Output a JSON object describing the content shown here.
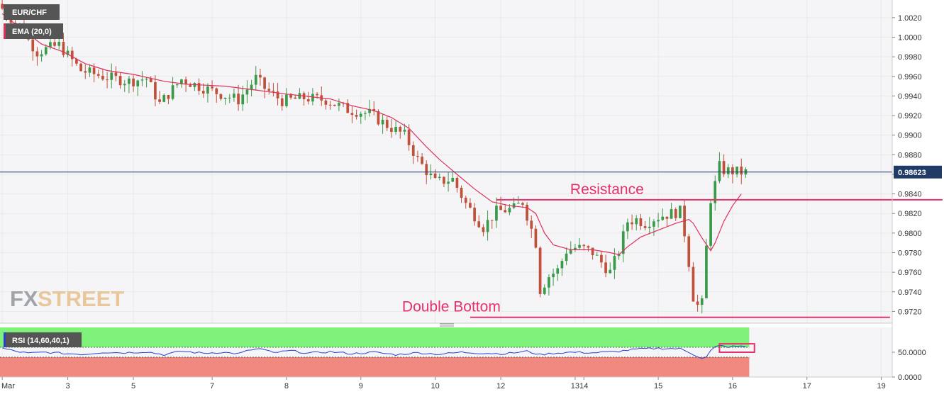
{
  "colors": {
    "up": "#3a9a4a",
    "down": "#c0503a",
    "ema": "#e0305a",
    "annotation": "#e8306a",
    "price_line": "#1b3a6b",
    "rsi_line": "#2a3fd0",
    "rsi_over": "#7ef27a",
    "rsi_under": "#f08a80",
    "grid": "#e9e9e9",
    "panel_bg": "#f5f5f7",
    "label_bg": "#555555",
    "price_tag_bg": "#1f3b66"
  },
  "chart_data": [
    {
      "type": "candlestick",
      "symbol_label": "EUR/CHF",
      "indicator_label": "EMA (20,0)",
      "watermark": {
        "fx": "FX",
        "street": "STREET"
      },
      "ylim": [
        0.9708,
        1.0038
      ],
      "y_ticks": [
        "1.0020",
        "1.0000",
        "0.9980",
        "0.9960",
        "0.9940",
        "0.9920",
        "0.9900",
        "0.9880",
        "0.9860",
        "0.9840",
        "0.9820",
        "0.9800",
        "0.9780",
        "0.9760",
        "0.9740",
        "0.9720"
      ],
      "x_ticks": [
        {
          "label": "Mar",
          "index": 0
        },
        {
          "label": "3",
          "index": 15
        },
        {
          "label": "5",
          "index": 30
        },
        {
          "label": "7",
          "index": 48
        },
        {
          "label": "8",
          "index": 65
        },
        {
          "label": "9",
          "index": 82
        },
        {
          "label": "10",
          "index": 99
        },
        {
          "label": "12",
          "index": 114
        },
        {
          "label": "13",
          "index": 131
        },
        {
          "label": "14",
          "index": 133
        },
        {
          "label": "15",
          "index": 150
        },
        {
          "label": "16",
          "index": 167
        },
        {
          "label": "17",
          "index": 184
        },
        {
          "label": "19",
          "index": 201
        }
      ],
      "current_price": "0.98623",
      "current_price_value": 0.98623,
      "annotations": [
        {
          "text": "Resistance",
          "y": 0.9834,
          "x_start": 113,
          "x_end": 215
        },
        {
          "text": "Double Bottom",
          "y": 0.9714,
          "x_start": 107,
          "x_end": 203
        }
      ],
      "anchors": [
        [
          0,
          1.0034
        ],
        [
          4,
          1.0015
        ],
        [
          9,
          0.9985
        ],
        [
          14,
          0.9992
        ],
        [
          19,
          0.9966
        ],
        [
          24,
          0.996
        ],
        [
          30,
          0.9955
        ],
        [
          34,
          0.9958
        ],
        [
          37,
          0.9932
        ],
        [
          42,
          0.9957
        ],
        [
          46,
          0.995
        ],
        [
          51,
          0.9942
        ],
        [
          55,
          0.9936
        ],
        [
          59,
          0.9958
        ],
        [
          61,
          0.9948
        ],
        [
          65,
          0.9935
        ],
        [
          70,
          0.9938
        ],
        [
          75,
          0.9936
        ],
        [
          80,
          0.9926
        ],
        [
          85,
          0.9922
        ],
        [
          89,
          0.991
        ],
        [
          93,
          0.99
        ],
        [
          96,
          0.9875
        ],
        [
          100,
          0.9852
        ],
        [
          104,
          0.9855
        ],
        [
          107,
          0.983
        ],
        [
          111,
          0.9806
        ],
        [
          114,
          0.9822
        ],
        [
          118,
          0.9825
        ],
        [
          120,
          0.9832
        ],
        [
          123,
          0.979
        ],
        [
          124,
          0.9742
        ],
        [
          126,
          0.9756
        ],
        [
          128,
          0.9762
        ],
        [
          130,
          0.9782
        ],
        [
          132,
          0.9785
        ],
        [
          134,
          0.9784
        ],
        [
          136,
          0.978
        ],
        [
          138,
          0.977
        ],
        [
          140,
          0.976
        ],
        [
          142,
          0.9782
        ],
        [
          144,
          0.9812
        ],
        [
          146,
          0.9814
        ],
        [
          148,
          0.981
        ],
        [
          150,
          0.9815
        ],
        [
          152,
          0.9818
        ],
        [
          154,
          0.982
        ],
        [
          156,
          0.9822
        ],
        [
          157,
          0.98
        ],
        [
          158,
          0.977
        ],
        [
          159,
          0.9735
        ],
        [
          160,
          0.9726
        ],
        [
          161,
          0.9728
        ],
        [
          162,
          0.9785
        ],
        [
          163,
          0.9835
        ],
        [
          164,
          0.985
        ],
        [
          165,
          0.9868
        ],
        [
          166,
          0.9864
        ],
        [
          168,
          0.9863
        ],
        [
          170,
          0.9862
        ]
      ],
      "ema_points": [
        [
          0,
          1.0024
        ],
        [
          4,
          1.001
        ],
        [
          9,
          0.9993
        ],
        [
          14,
          0.9985
        ],
        [
          19,
          0.9973
        ],
        [
          24,
          0.9966
        ],
        [
          30,
          0.9962
        ],
        [
          37,
          0.9955
        ],
        [
          42,
          0.9952
        ],
        [
          51,
          0.995
        ],
        [
          58,
          0.9946
        ],
        [
          65,
          0.9942
        ],
        [
          75,
          0.9937
        ],
        [
          80,
          0.993
        ],
        [
          85,
          0.9925
        ],
        [
          89,
          0.9918
        ],
        [
          93,
          0.9907
        ],
        [
          97,
          0.9888
        ],
        [
          100,
          0.9875
        ],
        [
          104,
          0.986
        ],
        [
          108,
          0.9845
        ],
        [
          112,
          0.9832
        ],
        [
          116,
          0.9828
        ],
        [
          120,
          0.9826
        ],
        [
          122,
          0.982
        ],
        [
          124,
          0.98
        ],
        [
          126,
          0.9788
        ],
        [
          130,
          0.9783
        ],
        [
          135,
          0.9783
        ],
        [
          139,
          0.978
        ],
        [
          141,
          0.9778
        ],
        [
          143,
          0.9786
        ],
        [
          146,
          0.9796
        ],
        [
          150,
          0.9803
        ],
        [
          154,
          0.981
        ],
        [
          157,
          0.9814
        ],
        [
          158,
          0.981
        ],
        [
          160,
          0.9795
        ],
        [
          162,
          0.9782
        ],
        [
          163,
          0.979
        ],
        [
          165,
          0.9812
        ],
        [
          167,
          0.9828
        ],
        [
          169,
          0.984
        ]
      ],
      "candle_count": 171,
      "x_range": [
        -0.5,
        203.5
      ]
    },
    {
      "type": "line",
      "label": "RSI (14,60,40,1)",
      "y_ticks": [
        "50.0000",
        "0.0000"
      ],
      "overbought": 60,
      "oversold": 40,
      "ylim": [
        0,
        100
      ],
      "anchors": [
        [
          0,
          58
        ],
        [
          3,
          52
        ],
        [
          6,
          48
        ],
        [
          10,
          50
        ],
        [
          15,
          47
        ],
        [
          19,
          46
        ],
        [
          23,
          50
        ],
        [
          28,
          49
        ],
        [
          33,
          51
        ],
        [
          37,
          45
        ],
        [
          41,
          52
        ],
        [
          46,
          48
        ],
        [
          50,
          50
        ],
        [
          54,
          47
        ],
        [
          57,
          55
        ],
        [
          59,
          57
        ],
        [
          62,
          49
        ],
        [
          66,
          53
        ],
        [
          70,
          48
        ],
        [
          75,
          51
        ],
        [
          80,
          47
        ],
        [
          85,
          50
        ],
        [
          90,
          45
        ],
        [
          95,
          49
        ],
        [
          100,
          46
        ],
        [
          105,
          50
        ],
        [
          110,
          48
        ],
        [
          115,
          47
        ],
        [
          120,
          52
        ],
        [
          123,
          45
        ],
        [
          126,
          48
        ],
        [
          130,
          50
        ],
        [
          135,
          49
        ],
        [
          140,
          51
        ],
        [
          145,
          56
        ],
        [
          150,
          58
        ],
        [
          155,
          57
        ],
        [
          157,
          50
        ],
        [
          159,
          42
        ],
        [
          160,
          38
        ],
        [
          161,
          40
        ],
        [
          162,
          53
        ],
        [
          163,
          60
        ],
        [
          164,
          63
        ],
        [
          166,
          61
        ],
        [
          168,
          62
        ],
        [
          170,
          61
        ]
      ],
      "highlight_box": {
        "from_index": 164,
        "to_index": 172,
        "top": 67,
        "bottom": 50
      }
    }
  ]
}
